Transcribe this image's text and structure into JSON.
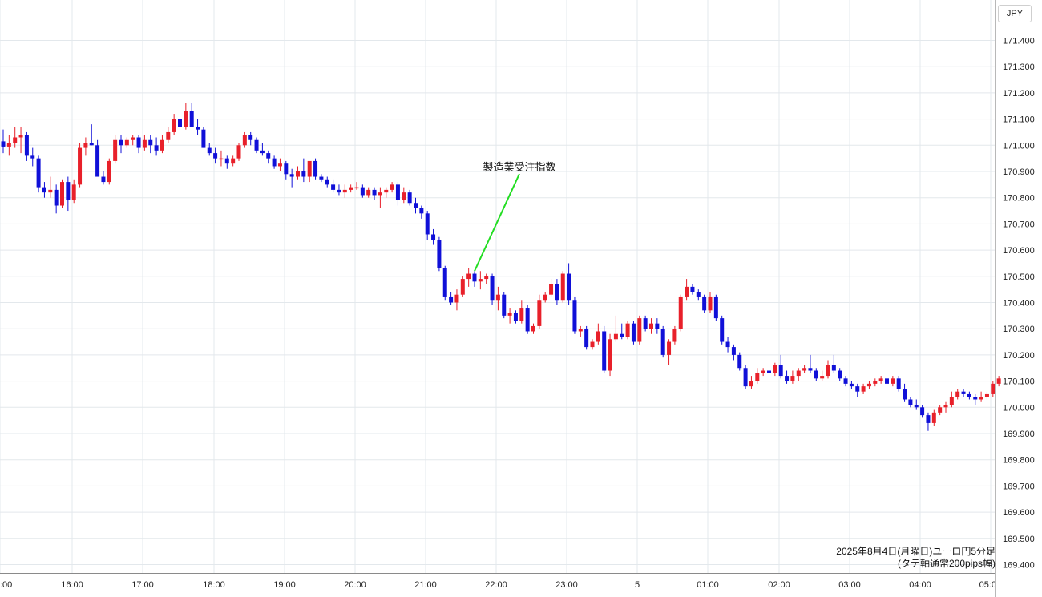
{
  "currency_label": "JPY",
  "caption": {
    "line1": "2025年8月4日(月曜日)ユーロ円5分足",
    "line2": "(タテ軸通常200pips幅)"
  },
  "colors": {
    "up": "#e8202a",
    "down": "#1010d8",
    "grid": "#e3e8ec",
    "annotation_line": "#22dd22",
    "axis_text": "#222222"
  },
  "chart_data": {
    "type": "candlestick",
    "title": "",
    "xlabel": "",
    "ylabel": "",
    "ylim": [
      169.38,
      171.52
    ],
    "y_ticks": [
      "171.400",
      "171.300",
      "171.200",
      "171.100",
      "171.000",
      "170.900",
      "170.800",
      "170.700",
      "170.600",
      "170.500",
      "170.400",
      "170.300",
      "170.200",
      "170.100",
      "170.000",
      "169.900",
      "169.800",
      "169.700",
      "169.600",
      "169.500",
      "169.400"
    ],
    "x_ticks": [
      ":00",
      "16:00",
      "17:00",
      "18:00",
      "19:00",
      "20:00",
      "21:00",
      "22:00",
      "23:00",
      "5",
      "01:00",
      "02:00",
      "03:00",
      "04:00",
      "05:0"
    ],
    "grid": true,
    "annotation": {
      "text": "製造業受注指数",
      "candle_index": 80
    },
    "candles": [
      {
        "o": 171.015,
        "h": 171.06,
        "l": 170.97,
        "c": 170.995
      },
      {
        "o": 170.995,
        "h": 171.04,
        "l": 170.96,
        "c": 171.01
      },
      {
        "o": 171.01,
        "h": 171.07,
        "l": 170.99,
        "c": 171.03
      },
      {
        "o": 171.03,
        "h": 171.07,
        "l": 170.97,
        "c": 171.04
      },
      {
        "o": 171.04,
        "h": 171.05,
        "l": 170.94,
        "c": 170.96
      },
      {
        "o": 170.96,
        "h": 170.99,
        "l": 170.92,
        "c": 170.95
      },
      {
        "o": 170.95,
        "h": 170.96,
        "l": 170.82,
        "c": 170.84
      },
      {
        "o": 170.84,
        "h": 170.86,
        "l": 170.8,
        "c": 170.82
      },
      {
        "o": 170.82,
        "h": 170.88,
        "l": 170.8,
        "c": 170.83
      },
      {
        "o": 170.83,
        "h": 170.85,
        "l": 170.74,
        "c": 170.77
      },
      {
        "o": 170.77,
        "h": 170.87,
        "l": 170.76,
        "c": 170.86
      },
      {
        "o": 170.86,
        "h": 170.88,
        "l": 170.75,
        "c": 170.79
      },
      {
        "o": 170.79,
        "h": 170.87,
        "l": 170.78,
        "c": 170.85
      },
      {
        "o": 170.85,
        "h": 171.01,
        "l": 170.84,
        "c": 170.99
      },
      {
        "o": 170.99,
        "h": 171.03,
        "l": 170.96,
        "c": 171.01
      },
      {
        "o": 171.01,
        "h": 171.08,
        "l": 171.0,
        "c": 171.0
      },
      {
        "o": 171.0,
        "h": 171.02,
        "l": 170.89,
        "c": 170.88
      },
      {
        "o": 170.88,
        "h": 170.9,
        "l": 170.85,
        "c": 170.86
      },
      {
        "o": 170.86,
        "h": 170.95,
        "l": 170.85,
        "c": 170.94
      },
      {
        "o": 170.94,
        "h": 171.04,
        "l": 170.93,
        "c": 171.02
      },
      {
        "o": 171.02,
        "h": 171.04,
        "l": 170.97,
        "c": 171.0
      },
      {
        "o": 171.0,
        "h": 171.03,
        "l": 170.99,
        "c": 171.02
      },
      {
        "o": 171.02,
        "h": 171.04,
        "l": 171.0,
        "c": 171.03
      },
      {
        "o": 171.03,
        "h": 171.04,
        "l": 170.97,
        "c": 170.99
      },
      {
        "o": 170.99,
        "h": 171.04,
        "l": 170.98,
        "c": 171.02
      },
      {
        "o": 171.02,
        "h": 171.04,
        "l": 170.97,
        "c": 171.0
      },
      {
        "o": 171.0,
        "h": 171.03,
        "l": 170.96,
        "c": 170.98
      },
      {
        "o": 170.98,
        "h": 171.04,
        "l": 170.97,
        "c": 171.02
      },
      {
        "o": 171.02,
        "h": 171.07,
        "l": 171.01,
        "c": 171.05
      },
      {
        "o": 171.05,
        "h": 171.12,
        "l": 171.04,
        "c": 171.1
      },
      {
        "o": 171.1,
        "h": 171.11,
        "l": 171.06,
        "c": 171.07
      },
      {
        "o": 171.07,
        "h": 171.16,
        "l": 171.06,
        "c": 171.13
      },
      {
        "o": 171.13,
        "h": 171.16,
        "l": 171.07,
        "c": 171.07
      },
      {
        "o": 171.07,
        "h": 171.1,
        "l": 171.04,
        "c": 171.06
      },
      {
        "o": 171.06,
        "h": 171.07,
        "l": 170.99,
        "c": 170.99
      },
      {
        "o": 170.99,
        "h": 171.01,
        "l": 170.96,
        "c": 170.97
      },
      {
        "o": 170.97,
        "h": 170.99,
        "l": 170.93,
        "c": 170.95
      },
      {
        "o": 170.95,
        "h": 170.98,
        "l": 170.92,
        "c": 170.95
      },
      {
        "o": 170.95,
        "h": 170.96,
        "l": 170.91,
        "c": 170.93
      },
      {
        "o": 170.93,
        "h": 170.96,
        "l": 170.92,
        "c": 170.95
      },
      {
        "o": 170.95,
        "h": 171.01,
        "l": 170.94,
        "c": 171.0
      },
      {
        "o": 171.0,
        "h": 171.05,
        "l": 170.99,
        "c": 171.04
      },
      {
        "o": 171.04,
        "h": 171.05,
        "l": 171.0,
        "c": 171.02
      },
      {
        "o": 171.02,
        "h": 171.03,
        "l": 170.97,
        "c": 170.98
      },
      {
        "o": 170.98,
        "h": 171.01,
        "l": 170.96,
        "c": 170.97
      },
      {
        "o": 170.97,
        "h": 170.98,
        "l": 170.93,
        "c": 170.95
      },
      {
        "o": 170.95,
        "h": 170.96,
        "l": 170.91,
        "c": 170.92
      },
      {
        "o": 170.92,
        "h": 170.95,
        "l": 170.9,
        "c": 170.93
      },
      {
        "o": 170.93,
        "h": 170.94,
        "l": 170.87,
        "c": 170.89
      },
      {
        "o": 170.89,
        "h": 170.91,
        "l": 170.84,
        "c": 170.88
      },
      {
        "o": 170.88,
        "h": 170.92,
        "l": 170.87,
        "c": 170.9
      },
      {
        "o": 170.9,
        "h": 170.95,
        "l": 170.86,
        "c": 170.88
      },
      {
        "o": 170.88,
        "h": 170.93,
        "l": 170.86,
        "c": 170.94
      },
      {
        "o": 170.94,
        "h": 170.95,
        "l": 170.87,
        "c": 170.88
      },
      {
        "o": 170.88,
        "h": 170.89,
        "l": 170.86,
        "c": 170.87
      },
      {
        "o": 170.87,
        "h": 170.88,
        "l": 170.84,
        "c": 170.85
      },
      {
        "o": 170.85,
        "h": 170.87,
        "l": 170.82,
        "c": 170.83
      },
      {
        "o": 170.83,
        "h": 170.85,
        "l": 170.81,
        "c": 170.82
      },
      {
        "o": 170.82,
        "h": 170.85,
        "l": 170.8,
        "c": 170.83
      },
      {
        "o": 170.83,
        "h": 170.85,
        "l": 170.82,
        "c": 170.84
      },
      {
        "o": 170.84,
        "h": 170.86,
        "l": 170.83,
        "c": 170.84
      },
      {
        "o": 170.84,
        "h": 170.85,
        "l": 170.8,
        "c": 170.81
      },
      {
        "o": 170.81,
        "h": 170.84,
        "l": 170.8,
        "c": 170.83
      },
      {
        "o": 170.83,
        "h": 170.84,
        "l": 170.79,
        "c": 170.81
      },
      {
        "o": 170.81,
        "h": 170.84,
        "l": 170.76,
        "c": 170.82
      },
      {
        "o": 170.82,
        "h": 170.84,
        "l": 170.8,
        "c": 170.83
      },
      {
        "o": 170.83,
        "h": 170.86,
        "l": 170.82,
        "c": 170.85
      },
      {
        "o": 170.85,
        "h": 170.86,
        "l": 170.77,
        "c": 170.79
      },
      {
        "o": 170.79,
        "h": 170.84,
        "l": 170.78,
        "c": 170.82
      },
      {
        "o": 170.82,
        "h": 170.83,
        "l": 170.77,
        "c": 170.78
      },
      {
        "o": 170.78,
        "h": 170.8,
        "l": 170.74,
        "c": 170.76
      },
      {
        "o": 170.76,
        "h": 170.77,
        "l": 170.72,
        "c": 170.74
      },
      {
        "o": 170.74,
        "h": 170.75,
        "l": 170.64,
        "c": 170.66
      },
      {
        "o": 170.66,
        "h": 170.68,
        "l": 170.62,
        "c": 170.64
      },
      {
        "o": 170.64,
        "h": 170.65,
        "l": 170.52,
        "c": 170.53
      },
      {
        "o": 170.53,
        "h": 170.54,
        "l": 170.41,
        "c": 170.42
      },
      {
        "o": 170.42,
        "h": 170.44,
        "l": 170.39,
        "c": 170.4
      },
      {
        "o": 170.4,
        "h": 170.45,
        "l": 170.37,
        "c": 170.43
      },
      {
        "o": 170.43,
        "h": 170.5,
        "l": 170.42,
        "c": 170.49
      },
      {
        "o": 170.49,
        "h": 170.53,
        "l": 170.46,
        "c": 170.51
      },
      {
        "o": 170.51,
        "h": 170.52,
        "l": 170.46,
        "c": 170.48
      },
      {
        "o": 170.48,
        "h": 170.52,
        "l": 170.45,
        "c": 170.49
      },
      {
        "o": 170.49,
        "h": 170.51,
        "l": 170.47,
        "c": 170.5
      },
      {
        "o": 170.5,
        "h": 170.51,
        "l": 170.39,
        "c": 170.41
      },
      {
        "o": 170.41,
        "h": 170.46,
        "l": 170.37,
        "c": 170.43
      },
      {
        "o": 170.43,
        "h": 170.44,
        "l": 170.34,
        "c": 170.35
      },
      {
        "o": 170.35,
        "h": 170.38,
        "l": 170.32,
        "c": 170.36
      },
      {
        "o": 170.36,
        "h": 170.37,
        "l": 170.32,
        "c": 170.33
      },
      {
        "o": 170.33,
        "h": 170.41,
        "l": 170.32,
        "c": 170.38
      },
      {
        "o": 170.38,
        "h": 170.39,
        "l": 170.28,
        "c": 170.29
      },
      {
        "o": 170.29,
        "h": 170.32,
        "l": 170.28,
        "c": 170.31
      },
      {
        "o": 170.31,
        "h": 170.43,
        "l": 170.3,
        "c": 170.41
      },
      {
        "o": 170.41,
        "h": 170.44,
        "l": 170.4,
        "c": 170.43
      },
      {
        "o": 170.43,
        "h": 170.49,
        "l": 170.42,
        "c": 170.47
      },
      {
        "o": 170.47,
        "h": 170.49,
        "l": 170.39,
        "c": 170.41
      },
      {
        "o": 170.41,
        "h": 170.52,
        "l": 170.4,
        "c": 170.51
      },
      {
        "o": 170.51,
        "h": 170.55,
        "l": 170.39,
        "c": 170.41
      },
      {
        "o": 170.41,
        "h": 170.42,
        "l": 170.28,
        "c": 170.29
      },
      {
        "o": 170.29,
        "h": 170.31,
        "l": 170.27,
        "c": 170.3
      },
      {
        "o": 170.3,
        "h": 170.31,
        "l": 170.22,
        "c": 170.23
      },
      {
        "o": 170.23,
        "h": 170.26,
        "l": 170.22,
        "c": 170.25
      },
      {
        "o": 170.25,
        "h": 170.32,
        "l": 170.24,
        "c": 170.29
      },
      {
        "o": 170.29,
        "h": 170.31,
        "l": 170.13,
        "c": 170.14
      },
      {
        "o": 170.14,
        "h": 170.28,
        "l": 170.12,
        "c": 170.26
      },
      {
        "o": 170.26,
        "h": 170.35,
        "l": 170.25,
        "c": 170.28
      },
      {
        "o": 170.28,
        "h": 170.32,
        "l": 170.26,
        "c": 170.27
      },
      {
        "o": 170.27,
        "h": 170.33,
        "l": 170.26,
        "c": 170.32
      },
      {
        "o": 170.32,
        "h": 170.33,
        "l": 170.24,
        "c": 170.25
      },
      {
        "o": 170.25,
        "h": 170.35,
        "l": 170.24,
        "c": 170.34
      },
      {
        "o": 170.34,
        "h": 170.35,
        "l": 170.29,
        "c": 170.3
      },
      {
        "o": 170.3,
        "h": 170.34,
        "l": 170.28,
        "c": 170.32
      },
      {
        "o": 170.32,
        "h": 170.34,
        "l": 170.28,
        "c": 170.3
      },
      {
        "o": 170.3,
        "h": 170.31,
        "l": 170.19,
        "c": 170.2
      },
      {
        "o": 170.2,
        "h": 170.26,
        "l": 170.16,
        "c": 170.25
      },
      {
        "o": 170.25,
        "h": 170.31,
        "l": 170.24,
        "c": 170.3
      },
      {
        "o": 170.3,
        "h": 170.43,
        "l": 170.29,
        "c": 170.42
      },
      {
        "o": 170.42,
        "h": 170.49,
        "l": 170.41,
        "c": 170.46
      },
      {
        "o": 170.46,
        "h": 170.47,
        "l": 170.43,
        "c": 170.44
      },
      {
        "o": 170.44,
        "h": 170.45,
        "l": 170.41,
        "c": 170.42
      },
      {
        "o": 170.42,
        "h": 170.43,
        "l": 170.36,
        "c": 170.37
      },
      {
        "o": 170.37,
        "h": 170.44,
        "l": 170.36,
        "c": 170.42
      },
      {
        "o": 170.42,
        "h": 170.43,
        "l": 170.33,
        "c": 170.34
      },
      {
        "o": 170.34,
        "h": 170.35,
        "l": 170.24,
        "c": 170.25
      },
      {
        "o": 170.25,
        "h": 170.27,
        "l": 170.21,
        "c": 170.23
      },
      {
        "o": 170.23,
        "h": 170.24,
        "l": 170.18,
        "c": 170.2
      },
      {
        "o": 170.2,
        "h": 170.21,
        "l": 170.14,
        "c": 170.15
      },
      {
        "o": 170.15,
        "h": 170.16,
        "l": 170.07,
        "c": 170.08
      },
      {
        "o": 170.08,
        "h": 170.12,
        "l": 170.07,
        "c": 170.1
      },
      {
        "o": 170.1,
        "h": 170.15,
        "l": 170.09,
        "c": 170.13
      },
      {
        "o": 170.13,
        "h": 170.15,
        "l": 170.12,
        "c": 170.14
      },
      {
        "o": 170.14,
        "h": 170.15,
        "l": 170.12,
        "c": 170.13
      },
      {
        "o": 170.13,
        "h": 170.17,
        "l": 170.12,
        "c": 170.16
      },
      {
        "o": 170.16,
        "h": 170.2,
        "l": 170.11,
        "c": 170.12
      },
      {
        "o": 170.12,
        "h": 170.14,
        "l": 170.09,
        "c": 170.1
      },
      {
        "o": 170.1,
        "h": 170.14,
        "l": 170.09,
        "c": 170.12
      },
      {
        "o": 170.12,
        "h": 170.15,
        "l": 170.1,
        "c": 170.14
      },
      {
        "o": 170.14,
        "h": 170.16,
        "l": 170.13,
        "c": 170.15
      },
      {
        "o": 170.15,
        "h": 170.2,
        "l": 170.13,
        "c": 170.14
      },
      {
        "o": 170.14,
        "h": 170.15,
        "l": 170.1,
        "c": 170.11
      },
      {
        "o": 170.11,
        "h": 170.14,
        "l": 170.1,
        "c": 170.12
      },
      {
        "o": 170.12,
        "h": 170.18,
        "l": 170.11,
        "c": 170.16
      },
      {
        "o": 170.16,
        "h": 170.2,
        "l": 170.13,
        "c": 170.14
      },
      {
        "o": 170.14,
        "h": 170.15,
        "l": 170.1,
        "c": 170.11
      },
      {
        "o": 170.11,
        "h": 170.12,
        "l": 170.08,
        "c": 170.09
      },
      {
        "o": 170.09,
        "h": 170.1,
        "l": 170.07,
        "c": 170.08
      },
      {
        "o": 170.08,
        "h": 170.09,
        "l": 170.04,
        "c": 170.06
      },
      {
        "o": 170.06,
        "h": 170.09,
        "l": 170.05,
        "c": 170.08
      },
      {
        "o": 170.08,
        "h": 170.1,
        "l": 170.07,
        "c": 170.09
      },
      {
        "o": 170.09,
        "h": 170.11,
        "l": 170.08,
        "c": 170.1
      },
      {
        "o": 170.1,
        "h": 170.12,
        "l": 170.09,
        "c": 170.11
      },
      {
        "o": 170.11,
        "h": 170.12,
        "l": 170.08,
        "c": 170.09
      },
      {
        "o": 170.09,
        "h": 170.12,
        "l": 170.08,
        "c": 170.11
      },
      {
        "o": 170.11,
        "h": 170.12,
        "l": 170.06,
        "c": 170.07
      },
      {
        "o": 170.07,
        "h": 170.09,
        "l": 170.02,
        "c": 170.03
      },
      {
        "o": 170.03,
        "h": 170.04,
        "l": 170.0,
        "c": 170.01
      },
      {
        "o": 170.01,
        "h": 170.03,
        "l": 169.99,
        "c": 170.0
      },
      {
        "o": 170.0,
        "h": 170.01,
        "l": 169.96,
        "c": 169.97
      },
      {
        "o": 169.97,
        "h": 169.98,
        "l": 169.91,
        "c": 169.94
      },
      {
        "o": 169.94,
        "h": 169.99,
        "l": 169.93,
        "c": 169.98
      },
      {
        "o": 169.98,
        "h": 170.01,
        "l": 169.97,
        "c": 170.0
      },
      {
        "o": 170.0,
        "h": 170.02,
        "l": 169.98,
        "c": 170.01
      },
      {
        "o": 170.01,
        "h": 170.06,
        "l": 170.0,
        "c": 170.04
      },
      {
        "o": 170.04,
        "h": 170.07,
        "l": 170.03,
        "c": 170.06
      },
      {
        "o": 170.06,
        "h": 170.07,
        "l": 170.04,
        "c": 170.05
      },
      {
        "o": 170.05,
        "h": 170.06,
        "l": 170.03,
        "c": 170.04
      },
      {
        "o": 170.04,
        "h": 170.05,
        "l": 170.01,
        "c": 170.03
      },
      {
        "o": 170.03,
        "h": 170.06,
        "l": 170.02,
        "c": 170.04
      },
      {
        "o": 170.04,
        "h": 170.06,
        "l": 170.03,
        "c": 170.05
      },
      {
        "o": 170.05,
        "h": 170.1,
        "l": 170.04,
        "c": 170.09
      },
      {
        "o": 170.09,
        "h": 170.12,
        "l": 170.08,
        "c": 170.11
      }
    ]
  }
}
